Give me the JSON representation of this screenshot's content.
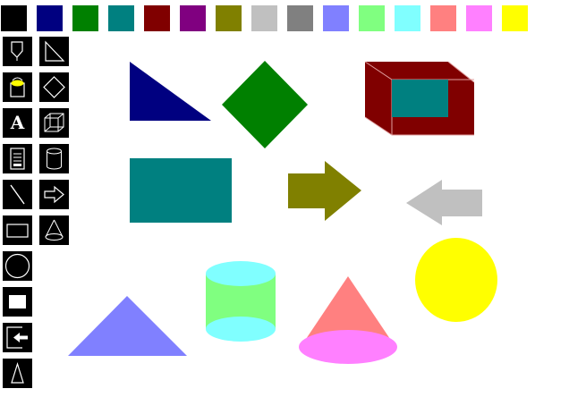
{
  "palette": {
    "colors": [
      "#000000",
      "#000080",
      "#008000",
      "#008080",
      "#800000",
      "#800080",
      "#808000",
      "#c0c0c0",
      "#808080",
      "#8080ff",
      "#80ff80",
      "#80ffff",
      "#ff8080",
      "#ff80ff",
      "#ffff00"
    ]
  },
  "tools": [
    {
      "name": "tool-freehand-button",
      "icon": "pen-icon"
    },
    {
      "name": "tool-right-triangle-button",
      "icon": "right-triangle-icon"
    },
    {
      "name": "tool-fill-button",
      "icon": "paint-bucket-icon"
    },
    {
      "name": "tool-diamond-button",
      "icon": "diamond-icon"
    },
    {
      "name": "tool-text-button",
      "icon": "text-icon",
      "glyph": "A"
    },
    {
      "name": "tool-box-button",
      "icon": "cube-icon"
    },
    {
      "name": "tool-document-button",
      "icon": "document-icon"
    },
    {
      "name": "tool-cylinder-button",
      "icon": "cylinder-icon"
    },
    {
      "name": "tool-line-button",
      "icon": "line-icon"
    },
    {
      "name": "tool-arrow-button",
      "icon": "arrow-right-icon"
    },
    {
      "name": "tool-rectangle-button",
      "icon": "rectangle-icon"
    },
    {
      "name": "tool-cone-button",
      "icon": "cone-icon"
    },
    {
      "name": "tool-circle-button",
      "icon": "circle-icon"
    },
    {
      "name": "tool-filled-rectangle-button",
      "icon": "filled-rectangle-icon"
    },
    {
      "name": "tool-exit-button",
      "icon": "exit-icon"
    },
    {
      "name": "tool-triangle-button",
      "icon": "triangle-icon"
    }
  ],
  "drawing": {
    "shapes": [
      {
        "name": "navy-right-triangle",
        "kind": "right-triangle",
        "fill": "#000080"
      },
      {
        "name": "green-diamond",
        "kind": "diamond",
        "fill": "#008000"
      },
      {
        "name": "maroon-box",
        "kind": "box",
        "fill": "#800000",
        "face": "#008080"
      },
      {
        "name": "teal-rectangle",
        "kind": "rectangle",
        "fill": "#008080"
      },
      {
        "name": "olive-arrow-right",
        "kind": "arrow-right",
        "fill": "#808000"
      },
      {
        "name": "silver-arrow-left",
        "kind": "arrow-left",
        "fill": "#c0c0c0"
      },
      {
        "name": "blue-triangle",
        "kind": "triangle",
        "fill": "#8080ff"
      },
      {
        "name": "green-cylinder",
        "kind": "cylinder",
        "fill": "#80ff80",
        "cap": "#80ffff"
      },
      {
        "name": "pink-cone",
        "kind": "cone",
        "fill": "#ff8080",
        "base": "#ff80ff"
      },
      {
        "name": "yellow-circle",
        "kind": "circle",
        "fill": "#ffff00"
      }
    ]
  }
}
